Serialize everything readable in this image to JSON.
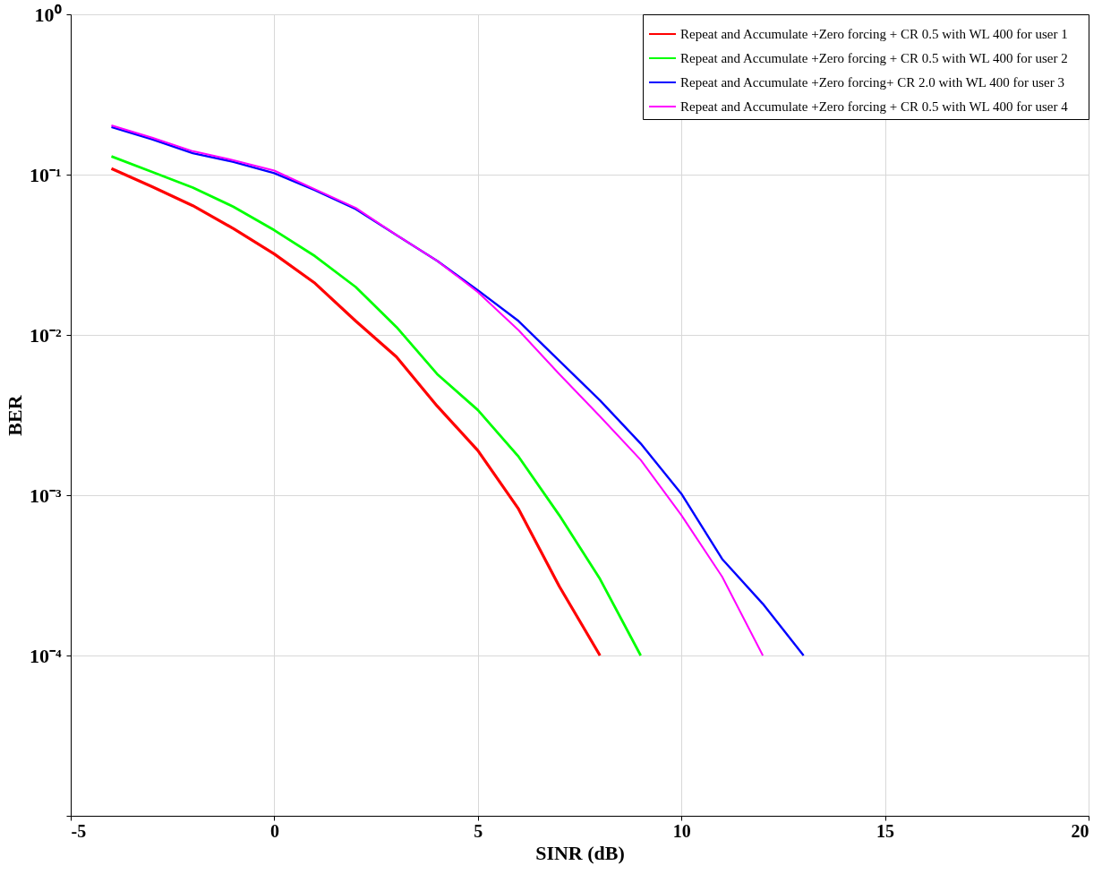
{
  "chart_data": {
    "type": "line",
    "xlabel": "SINR (dB)",
    "ylabel": "BER",
    "log": "y",
    "grid": true,
    "legend": "top right",
    "line_style": "solid",
    "marker": "none",
    "xlim": [
      -5,
      20
    ],
    "xticks": [
      -5,
      0,
      5,
      10,
      15,
      20
    ],
    "ylim": [
      1e-05,
      1
    ],
    "yticks": [
      {
        "value": 1,
        "label": "10⁰"
      },
      {
        "value": 0.1,
        "label": "10⁻¹"
      },
      {
        "value": 0.01,
        "label": "10⁻²"
      },
      {
        "value": 0.001,
        "label": "10⁻³"
      },
      {
        "value": 0.0001,
        "label": "10⁻⁴"
      },
      {
        "value": 1e-05,
        "label": null
      }
    ],
    "x": [
      -4,
      -3,
      -2,
      -1,
      0,
      1,
      2,
      3,
      4,
      5,
      6,
      7,
      8,
      9,
      10,
      11,
      12,
      13
    ],
    "series": [
      {
        "name": "Repeat and Accumulate +Zero forcing  + CR 0.5 with WL 400 for user 1",
        "color": "#ff0000",
        "values": [
          0.109,
          0.084,
          0.064,
          0.046,
          0.032,
          0.021,
          0.0122,
          0.0073,
          0.0036,
          0.0019,
          0.00082,
          0.00027,
          0.0001,
          null,
          null,
          null,
          null,
          null
        ]
      },
      {
        "name": "Repeat and Accumulate +Zero forcing + CR 0.5  with WL 400 for user 2",
        "color": "#00ff00",
        "values": [
          0.13,
          0.104,
          0.083,
          0.063,
          0.045,
          0.031,
          0.0199,
          0.0112,
          0.0057,
          0.0034,
          0.00174,
          0.00075,
          0.0003,
          0.0001,
          null,
          null,
          null,
          null
        ]
      },
      {
        "name": "Repeat and Accumulate +Zero forcing+ CR 2.0  with WL 400 for user 3",
        "color": "#0000ff",
        "values": [
          0.198,
          0.166,
          0.136,
          0.12,
          0.102,
          0.08,
          0.061,
          0.042,
          0.029,
          0.019,
          0.0122,
          0.0069,
          0.0039,
          0.0021,
          0.00102,
          0.0004,
          0.00021,
          0.0001
        ]
      },
      {
        "name": "Repeat and Accumulate +Zero forcing + CR 0.5  with   WL 400  for user 4",
        "color": "#ff00ff",
        "values": [
          0.203,
          0.17,
          0.14,
          0.123,
          0.106,
          0.081,
          0.062,
          0.042,
          0.029,
          0.0185,
          0.0107,
          0.0057,
          0.0031,
          0.00166,
          0.00075,
          0.00031,
          0.0001,
          null
        ]
      }
    ]
  }
}
